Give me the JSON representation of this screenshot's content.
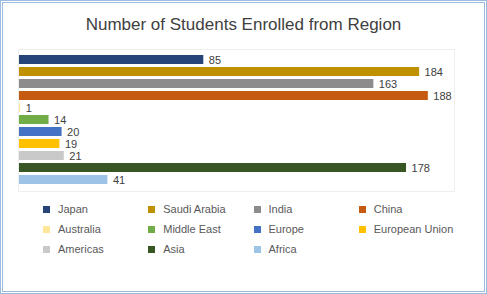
{
  "chart_data": {
    "type": "bar",
    "orientation": "horizontal",
    "title": "Number of Students Enrolled from Region",
    "categories": [
      "Japan",
      "Saudi Arabia",
      "India",
      "China",
      "Australia",
      "Middle East",
      "Europe",
      "European Union",
      "Americas",
      "Asia",
      "Africa"
    ],
    "values": [
      85,
      184,
      163,
      188,
      1,
      14,
      20,
      19,
      21,
      178,
      41
    ],
    "colors": [
      "#264478",
      "#bf9000",
      "#8c8c8c",
      "#c55a11",
      "#ffe699",
      "#70ad47",
      "#4472c4",
      "#ffc000",
      "#c9c9c9",
      "#375623",
      "#9dc3e6"
    ],
    "xlim": [
      0,
      200
    ],
    "data_labels": true,
    "tick_labels": false,
    "legend": "bottom"
  }
}
